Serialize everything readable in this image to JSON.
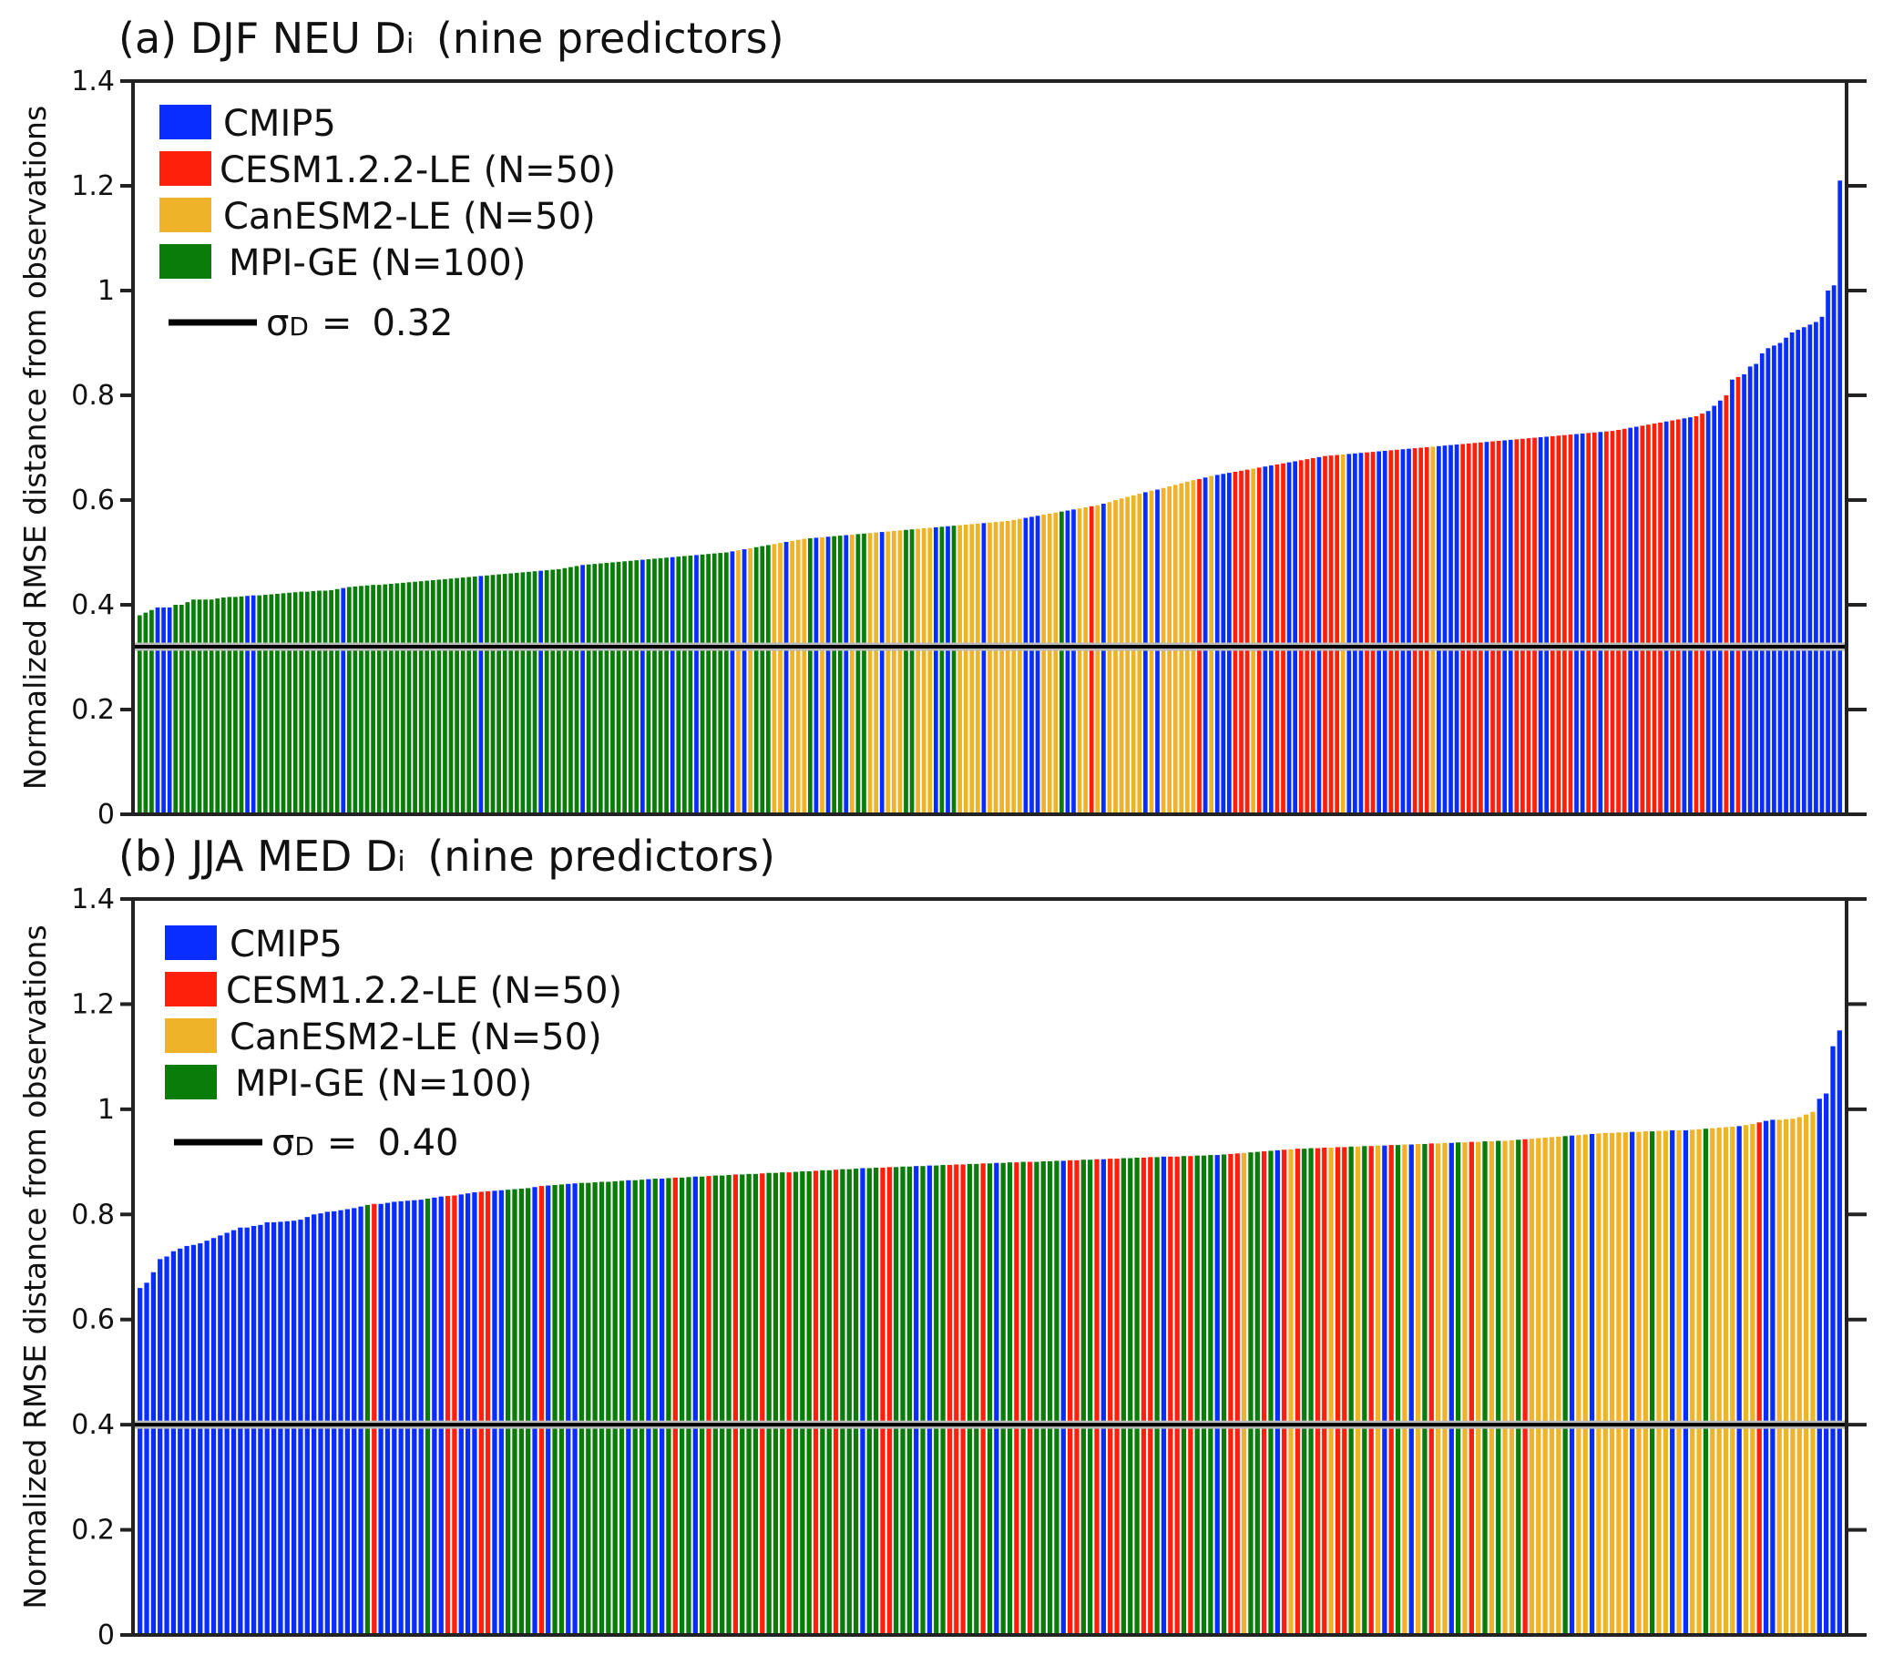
{
  "colors": {
    "CMIP5": "#0a2dff",
    "CESM1.2.2-LE": "#ff1f0a",
    "CanESM2-LE": "#efb329",
    "MPI-GE": "#0a7c0a",
    "sigma_line": "#000000"
  },
  "code_map": {
    "B": "CMIP5",
    "R": "CESM1.2.2-LE",
    "Y": "CanESM2-LE",
    "G": "MPI-GE"
  },
  "chart_data": [
    {
      "type": "bar",
      "title_prefix": "(a) DJF NEU D",
      "title_sub": "i",
      "title_suffix": " (nine predictors)",
      "ylabel": "Normalized RMSE distance from observations",
      "xlabel": "",
      "ylim": [
        0,
        1.4
      ],
      "yticks": [
        0,
        0.2,
        0.4,
        0.6,
        0.8,
        1.0,
        1.2,
        1.4
      ],
      "ytick_labels": [
        "0",
        "0.2",
        "0.4",
        "0.6",
        "0.8",
        "1",
        "1.2",
        "1.4"
      ],
      "legend": {
        "placement": "top-left",
        "entries": [
          "CMIP5",
          "CESM1.2.2-LE (N=50)",
          "CanESM2-LE (N=50)",
          "MPI-GE (N=100)"
        ],
        "sigma_label": "σ",
        "sigma_sub": "D",
        "sigma_eq": "=",
        "sigma_value_text": "0.32"
      },
      "sigma_D": 0.32,
      "codes": [
        "GGGBBBGGGG",
        "GGGGGGGGBB",
        "GGGGGGGGGG",
        "GGGGBGGGGG",
        "GGGGGGGGGG",
        "GGGGGGGBGG",
        "GGGGGGGBGG",
        "GGGGBGGGGG",
        "GGGGBGGGGB",
        "GGGBGGGGGB",
        "YBYGGGYYBY",
        "YYGBYBGGBY",
        "GGYYBYYYGG",
        "YYYBGBGYYY",
        "YBYYYYYYBB",
        "BYYYGBBYYR",
        "YBYYYYYYBY",
        "BYYYYYYRBY",
        "BBBRRRYRBB",
        "RRBBRRRBRR",
        "RYBBBRRBBR",
        "RBBRRRYBBB",
        "BRRRRBRRBB",
        "RRRRBBRRRR",
        "BBRRBRRRRB",
        "BRRRRBRRBB",
        "RRBBBRBRBB",
        "BBBBBBBBBB",
        "BBBBB"
      ],
      "values": [
        0.38,
        0.385,
        0.39,
        0.395,
        0.395,
        0.395,
        0.4,
        0.4,
        0.405,
        0.41,
        0.41,
        0.41,
        0.41,
        0.412,
        0.414,
        0.415,
        0.415,
        0.416,
        0.417,
        0.418,
        0.418,
        0.419,
        0.42,
        0.421,
        0.422,
        0.423,
        0.424,
        0.425,
        0.425,
        0.426,
        0.427,
        0.427,
        0.428,
        0.43,
        0.432,
        0.434,
        0.435,
        0.436,
        0.437,
        0.438,
        0.438,
        0.439,
        0.44,
        0.441,
        0.442,
        0.443,
        0.444,
        0.445,
        0.446,
        0.447,
        0.448,
        0.449,
        0.45,
        0.451,
        0.452,
        0.453,
        0.454,
        0.455,
        0.456,
        0.457,
        0.458,
        0.459,
        0.46,
        0.461,
        0.462,
        0.463,
        0.464,
        0.465,
        0.466,
        0.467,
        0.468,
        0.47,
        0.472,
        0.474,
        0.476,
        0.477,
        0.478,
        0.479,
        0.48,
        0.481,
        0.482,
        0.483,
        0.484,
        0.485,
        0.486,
        0.487,
        0.488,
        0.489,
        0.49,
        0.491,
        0.492,
        0.493,
        0.494,
        0.495,
        0.496,
        0.497,
        0.498,
        0.499,
        0.5,
        0.502,
        0.504,
        0.506,
        0.508,
        0.51,
        0.512,
        0.514,
        0.516,
        0.518,
        0.52,
        0.522,
        0.524,
        0.526,
        0.527,
        0.528,
        0.529,
        0.53,
        0.531,
        0.532,
        0.533,
        0.534,
        0.535,
        0.536,
        0.537,
        0.538,
        0.539,
        0.54,
        0.541,
        0.542,
        0.543,
        0.544,
        0.545,
        0.546,
        0.547,
        0.548,
        0.549,
        0.55,
        0.551,
        0.552,
        0.553,
        0.554,
        0.555,
        0.556,
        0.557,
        0.558,
        0.559,
        0.56,
        0.562,
        0.564,
        0.566,
        0.568,
        0.57,
        0.572,
        0.574,
        0.576,
        0.578,
        0.58,
        0.582,
        0.584,
        0.586,
        0.588,
        0.59,
        0.593,
        0.596,
        0.6,
        0.603,
        0.606,
        0.609,
        0.612,
        0.615,
        0.618,
        0.62,
        0.623,
        0.626,
        0.629,
        0.632,
        0.635,
        0.638,
        0.64,
        0.643,
        0.646,
        0.648,
        0.65,
        0.652,
        0.654,
        0.656,
        0.658,
        0.66,
        0.662,
        0.664,
        0.666,
        0.668,
        0.67,
        0.672,
        0.674,
        0.676,
        0.678,
        0.68,
        0.682,
        0.684,
        0.685,
        0.686,
        0.687,
        0.688,
        0.689,
        0.69,
        0.691,
        0.692,
        0.693,
        0.694,
        0.695,
        0.696,
        0.697,
        0.698,
        0.699,
        0.7,
        0.701,
        0.702,
        0.703,
        0.704,
        0.705,
        0.706,
        0.707,
        0.708,
        0.709,
        0.71,
        0.711,
        0.712,
        0.713,
        0.714,
        0.715,
        0.716,
        0.717,
        0.718,
        0.719,
        0.72,
        0.721,
        0.722,
        0.723,
        0.724,
        0.725,
        0.726,
        0.727,
        0.728,
        0.729,
        0.73,
        0.731,
        0.732,
        0.734,
        0.736,
        0.738,
        0.74,
        0.742,
        0.744,
        0.746,
        0.748,
        0.75,
        0.752,
        0.754,
        0.756,
        0.758,
        0.76,
        0.765,
        0.77,
        0.78,
        0.79,
        0.8,
        0.83,
        0.835,
        0.84,
        0.855,
        0.86,
        0.88,
        0.89,
        0.895,
        0.9,
        0.91,
        0.92,
        0.925,
        0.93,
        0.935,
        0.94,
        0.95,
        1.0,
        1.01,
        1.21
      ]
    },
    {
      "type": "bar",
      "title_prefix": "(b) JJA MED D",
      "title_sub": "i",
      "title_suffix": " (nine predictors)",
      "ylabel": "Normalized RMSE distance from observations",
      "xlabel": "",
      "ylim": [
        0,
        1.4
      ],
      "yticks": [
        0,
        0.2,
        0.4,
        0.6,
        0.8,
        1.0,
        1.2,
        1.4
      ],
      "ytick_labels": [
        "0",
        "0.2",
        "0.4",
        "0.6",
        "0.8",
        "1",
        "1.2",
        "1.4"
      ],
      "legend": {
        "placement": "top-left",
        "entries": [
          "CMIP5",
          "CESM1.2.2-LE (N=50)",
          "CanESM2-LE (N=50)",
          "MPI-GE (N=100)"
        ],
        "sigma_label": "σ",
        "sigma_sub": "D",
        "sigma_eq": "=",
        "sigma_value_text": "0.40"
      },
      "sigma_D": 0.4,
      "codes": [
        "BBBBBBBBBB",
        "BBBBBBBBBB",
        "BBBBBBBBBB",
        "BBBBGRBBBB",
        "BBBGBBRRBB",
        "BRRBBGGGGB",
        "RBGGBBGGGG",
        "GGGBGGBGBG",
        "RGGBGRGGGR",
        "GGGRGGGRGG",
        "GRGGRGGGBG",
        "GRRGGGBGBG",
        "GRRRGGRGBG",
        "GRGRGGGGBR",
        "RGGRBRRGGG",
        "RRGBRRGRGG",
        "GBGRRYGGRG",
        "BRYRGGRRYR",
        "RGYGRYBRGY",
        "BYGRYYBGYR",
        "YGYGYYGRYY",
        "YYYGBYYBYY",
        "YYYBYYGYYB",
        "YBYYGYYYYB",
        "YYRBBYYYYY",
        "YBBBB"
      ],
      "values": [
        0.66,
        0.67,
        0.69,
        0.715,
        0.72,
        0.73,
        0.735,
        0.74,
        0.742,
        0.745,
        0.75,
        0.755,
        0.76,
        0.765,
        0.77,
        0.775,
        0.775,
        0.778,
        0.78,
        0.785,
        0.785,
        0.786,
        0.787,
        0.788,
        0.79,
        0.795,
        0.8,
        0.802,
        0.805,
        0.806,
        0.808,
        0.81,
        0.812,
        0.815,
        0.818,
        0.82,
        0.82,
        0.822,
        0.824,
        0.825,
        0.826,
        0.827,
        0.828,
        0.83,
        0.832,
        0.834,
        0.835,
        0.836,
        0.838,
        0.84,
        0.842,
        0.843,
        0.844,
        0.845,
        0.846,
        0.847,
        0.848,
        0.849,
        0.85,
        0.852,
        0.854,
        0.855,
        0.856,
        0.857,
        0.858,
        0.859,
        0.86,
        0.86,
        0.861,
        0.862,
        0.862,
        0.863,
        0.864,
        0.865,
        0.865,
        0.866,
        0.867,
        0.868,
        0.868,
        0.869,
        0.87,
        0.87,
        0.871,
        0.872,
        0.872,
        0.873,
        0.874,
        0.874,
        0.875,
        0.876,
        0.876,
        0.877,
        0.877,
        0.878,
        0.879,
        0.879,
        0.88,
        0.88,
        0.881,
        0.882,
        0.882,
        0.883,
        0.884,
        0.884,
        0.885,
        0.886,
        0.886,
        0.887,
        0.888,
        0.888,
        0.889,
        0.889,
        0.89,
        0.89,
        0.891,
        0.891,
        0.892,
        0.892,
        0.893,
        0.893,
        0.894,
        0.894,
        0.895,
        0.895,
        0.896,
        0.896,
        0.897,
        0.897,
        0.898,
        0.898,
        0.899,
        0.899,
        0.9,
        0.9,
        0.9,
        0.901,
        0.901,
        0.902,
        0.902,
        0.903,
        0.903,
        0.904,
        0.904,
        0.905,
        0.905,
        0.906,
        0.906,
        0.907,
        0.907,
        0.908,
        0.908,
        0.909,
        0.909,
        0.91,
        0.91,
        0.91,
        0.911,
        0.911,
        0.912,
        0.912,
        0.913,
        0.913,
        0.914,
        0.915,
        0.916,
        0.917,
        0.918,
        0.919,
        0.92,
        0.921,
        0.922,
        0.923,
        0.924,
        0.925,
        0.925,
        0.926,
        0.926,
        0.927,
        0.927,
        0.928,
        0.928,
        0.929,
        0.929,
        0.93,
        0.93,
        0.931,
        0.931,
        0.932,
        0.932,
        0.933,
        0.933,
        0.934,
        0.934,
        0.935,
        0.935,
        0.936,
        0.936,
        0.937,
        0.937,
        0.938,
        0.938,
        0.939,
        0.939,
        0.94,
        0.94,
        0.941,
        0.942,
        0.943,
        0.944,
        0.945,
        0.946,
        0.947,
        0.948,
        0.949,
        0.95,
        0.951,
        0.952,
        0.953,
        0.954,
        0.955,
        0.955,
        0.956,
        0.956,
        0.957,
        0.957,
        0.958,
        0.958,
        0.959,
        0.959,
        0.96,
        0.96,
        0.96,
        0.961,
        0.962,
        0.963,
        0.964,
        0.965,
        0.966,
        0.967,
        0.968,
        0.97,
        0.972,
        0.975,
        0.978,
        0.98,
        0.98,
        0.981,
        0.982,
        0.985,
        0.99,
        0.995,
        1.02,
        1.03,
        1.12,
        1.15
      ]
    }
  ]
}
